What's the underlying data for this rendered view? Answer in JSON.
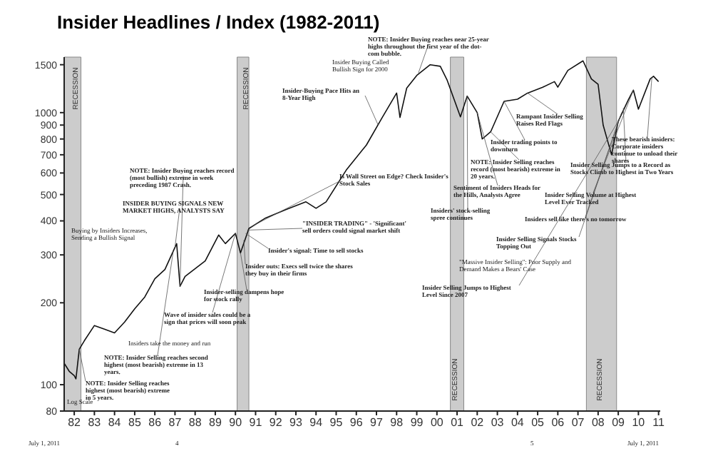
{
  "chart_data": {
    "type": "line",
    "title": "Insider Headlines / Index (1982-2011)",
    "x": [
      "1982-01",
      "1982-04",
      "1982-07",
      "1982-08",
      "1982-10",
      "1983-01",
      "1983-07",
      "1984-01",
      "1984-07",
      "1985-01",
      "1985-07",
      "1986-01",
      "1986-07",
      "1987-01",
      "1987-08",
      "1987-10",
      "1988-01",
      "1989-01",
      "1989-09",
      "1990-01",
      "1990-07",
      "1990-10",
      "1991-03",
      "1992-01",
      "1993-01",
      "1994-01",
      "1994-07",
      "1995-01",
      "1996-01",
      "1997-01",
      "1997-10",
      "1998-07",
      "1998-09",
      "1999-01",
      "1999-07",
      "2000-03",
      "2000-09",
      "2001-01",
      "2001-09",
      "2002-01",
      "2002-07",
      "2002-10",
      "2003-03",
      "2003-11",
      "2004-07",
      "2005-01",
      "2005-10",
      "2006-05",
      "2006-07",
      "2007-01",
      "2007-10",
      "2008-03",
      "2008-07",
      "2008-10",
      "2009-03",
      "2009-07",
      "2010-01",
      "2010-04",
      "2010-07",
      "2011-02",
      "2011-04",
      "2011-07"
    ],
    "series": [
      {
        "color": "#111111",
        "values": [
          120,
          112,
          108,
          105,
          135,
          145,
          165,
          160,
          155,
          170,
          190,
          210,
          245,
          265,
          330,
          230,
          250,
          285,
          355,
          330,
          360,
          305,
          375,
          410,
          440,
          470,
          445,
          470,
          615,
          760,
          950,
          1180,
          960,
          1230,
          1370,
          1500,
          1480,
          1320,
          965,
          1150,
          1000,
          800,
          850,
          1100,
          1120,
          1180,
          1240,
          1300,
          1240,
          1430,
          1550,
          1330,
          1270,
          900,
          700,
          930,
          1115,
          1210,
          1030,
          1330,
          1360,
          1300
        ]
      }
    ],
    "xlim": [
      "1982-01",
      "2011-08"
    ],
    "xticks": [
      {
        "value": "1982-07",
        "label": "82"
      },
      {
        "value": "1983-07",
        "label": "83"
      },
      {
        "value": "1984-07",
        "label": "84"
      },
      {
        "value": "1985-07",
        "label": "85"
      },
      {
        "value": "1986-07",
        "label": "86"
      },
      {
        "value": "1987-07",
        "label": "87"
      },
      {
        "value": "1988-07",
        "label": "88"
      },
      {
        "value": "1989-07",
        "label": "89"
      },
      {
        "value": "1990-07",
        "label": "90"
      },
      {
        "value": "1991-07",
        "label": "91"
      },
      {
        "value": "1992-07",
        "label": "92"
      },
      {
        "value": "1993-07",
        "label": "93"
      },
      {
        "value": "1994-07",
        "label": "94"
      },
      {
        "value": "1995-07",
        "label": "95"
      },
      {
        "value": "1996-07",
        "label": "96"
      },
      {
        "value": "1997-07",
        "label": "97"
      },
      {
        "value": "1998-07",
        "label": "98"
      },
      {
        "value": "1999-07",
        "label": "99"
      },
      {
        "value": "2000-07",
        "label": "00"
      },
      {
        "value": "2001-07",
        "label": "01"
      },
      {
        "value": "2002-07",
        "label": "02"
      },
      {
        "value": "2003-07",
        "label": "03"
      },
      {
        "value": "2004-07",
        "label": "04"
      },
      {
        "value": "2005-07",
        "label": "05"
      },
      {
        "value": "2006-07",
        "label": "06"
      },
      {
        "value": "2007-07",
        "label": "07"
      },
      {
        "value": "2008-07",
        "label": "08"
      },
      {
        "value": "2009-07",
        "label": "09"
      },
      {
        "value": "2010-07",
        "label": "10"
      },
      {
        "value": "2011-07",
        "label": "11"
      }
    ],
    "ylim": [
      80,
      1600
    ],
    "yticks": [
      80,
      100,
      200,
      300,
      400,
      500,
      600,
      700,
      800,
      900,
      1000,
      1500
    ],
    "log": true,
    "grid": false,
    "marker": "none",
    "line_style": "solid",
    "bands": [
      {
        "axis": "x",
        "from": "1982-01",
        "to": "1982-11",
        "label": "RECESSION",
        "color": "#cccccc"
      },
      {
        "axis": "x",
        "from": "1990-08",
        "to": "1991-03",
        "label": "RECESSION",
        "color": "#cccccc"
      },
      {
        "axis": "x",
        "from": "2001-03",
        "to": "2001-11",
        "label": "RECESSION",
        "color": "#cccccc"
      },
      {
        "axis": "x",
        "from": "2007-12",
        "to": "2009-06",
        "label": "RECESSION",
        "color": "#cccccc"
      }
    ],
    "annotations": [
      {
        "text": "NOTE: Insider Buying reaches near 25-year highs throughout the first year of the dot-com bubble.",
        "x": "1999-08",
        "y": 1400
      },
      "Insider Buying Called Bullish Sign for 2000",
      {
        "text": "Insider-Buying Pace Hits an 8-Year High",
        "x": "1997-08",
        "y": 900
      },
      {
        "text": "NOTE: Insider Buying reaches record (most bullish) extreme in week preceding 1987 Crash.",
        "x": "1987-10",
        "y": 230
      },
      {
        "text": "INSIDER BUYING SIGNALS NEW MARKET HIGHS, ANALYSTS SAY",
        "x": "1987-07",
        "y": 320
      },
      "Buying by Insiders Increases, Sending a Bullish Signal",
      {
        "text": "Is Wall Street on Edge? Check Insider's Stock Sales",
        "x": "1991-04",
        "y": 380
      },
      {
        "text": "\"INSIDER TRADING\" - 'Significant' sell orders could signal market shift",
        "x": "1991-02",
        "y": 370
      },
      {
        "text": "Insider's signal: Time to sell stocks",
        "x": "1991-01",
        "y": 360
      },
      {
        "text": "Insider outs: Execs sell twice the shares they buy in their firms",
        "x": "1990-12",
        "y": 340
      },
      {
        "text": "Insider-selling dampens hope for stock rally",
        "x": "1990-10",
        "y": 305
      },
      {
        "text": "Wave of insider sales could be a sign that prices will soon peak",
        "x": "1990-07",
        "y": 360
      },
      "Insiders take the money and run",
      {
        "text": "NOTE: Insider Selling reaches second highest (most bearish) extreme in 13 years.",
        "x": "1987-06",
        "y": 310
      },
      {
        "text": "NOTE: Insider Selling reaches highest (most bearish) extreme in 5 years.",
        "x": "1982-10",
        "y": 135
      },
      {
        "text": "Rampant Insider Selling Raises Red Flags",
        "x": "2005-01",
        "y": 1180
      },
      {
        "text": "Insider trading points to downturn",
        "x": "2003-11",
        "y": 1100
      },
      {
        "text": "NOTE: Insider Selling reaches record (most bearish) extreme in 20 years.",
        "x": "2003-03",
        "y": 850
      },
      {
        "text": "Sentiment of Insiders Heads for the Hills, Analysts Agree",
        "x": "2002-07",
        "y": 1000
      },
      {
        "text": "Insiders' stock-selling spree continues",
        "x": "2002-01",
        "y": 1150
      },
      {
        "text": "These bearish insiders: Corporate insiders continue to unload their shares",
        "x": "2011-03",
        "y": 1345
      },
      {
        "text": "Insider Selling Jumps to a Record as Stocks Climb to Highest in Two Years",
        "x": "2009-10",
        "y": 1040
      },
      {
        "text": "Insider Selling Volume at Highest Level Ever Tracked",
        "x": "2010-04",
        "y": 1210
      },
      {
        "text": "Insiders sell like there's no tomorrow",
        "x": "2009-09",
        "y": 1000
      },
      {
        "text": "Insider Selling Signals Stocks Topping Out",
        "x": "2009-08",
        "y": 960
      },
      "\"Massive Insider Selling\": Poor Supply and Demand Makes a Bears' Case",
      {
        "text": "Insider Selling Jumps to Highest Level Since 2007",
        "x": "2009-07",
        "y": 930
      },
      "Log Scale",
      "July 1, 2011",
      "4",
      "5",
      "July 1, 2011"
    ]
  }
}
